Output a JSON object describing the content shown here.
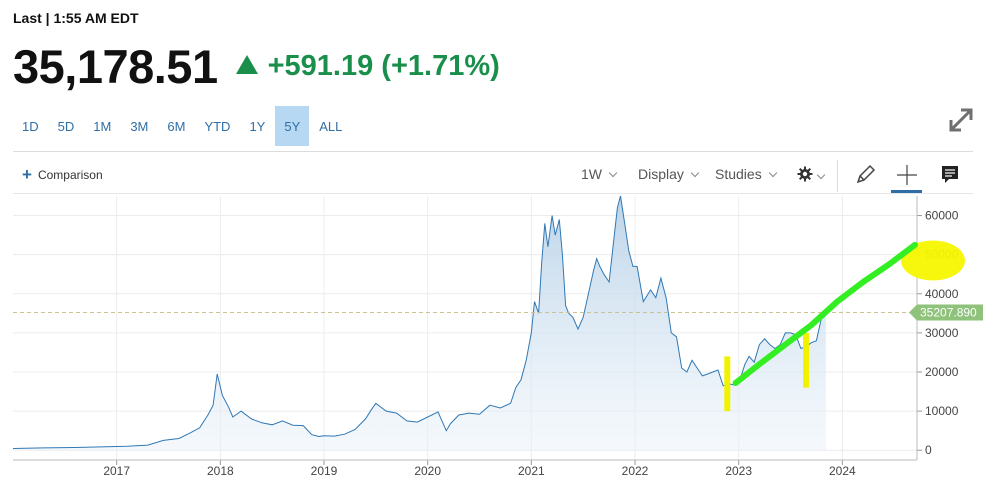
{
  "header": {
    "last_label": "Last | 1:55 AM EDT",
    "price": "35,178.51",
    "change": "+591.19 (+1.71%)",
    "up_color": "#1a8f4c"
  },
  "ranges": [
    "1D",
    "5D",
    "1M",
    "3M",
    "6M",
    "YTD",
    "1Y",
    "5Y",
    "ALL"
  ],
  "active_range": "5Y",
  "toolbar": {
    "comparison_label": "Comparison",
    "interval_label": "1W",
    "display_label": "Display",
    "studies_label": "Studies"
  },
  "icons": {
    "expand": "expand-icon",
    "settings": "gear-icon",
    "draw": "pencil-icon",
    "crosshair": "crosshair-icon",
    "comment": "comment-icon"
  },
  "chart_data": {
    "type": "area",
    "x_unit": "year",
    "xlim": [
      2016.0,
      2024.72
    ],
    "ylim": [
      -2500,
      65000
    ],
    "x_ticks": [
      "2017",
      "2018",
      "2019",
      "2020",
      "2021",
      "2022",
      "2023",
      "2024"
    ],
    "y_ticks": [
      0,
      10000,
      20000,
      30000,
      40000,
      50000,
      60000
    ],
    "y_tick_labels": [
      "0",
      "10000",
      "20000",
      "30000",
      "40000",
      "50000",
      "60000"
    ],
    "last_value": 35207.89,
    "last_value_label": "35207.890",
    "last_value_line": "dashed",
    "grid": true,
    "y_axis_side": "right",
    "line_color": "#2f78b5",
    "fill_color": "#c7dcec",
    "series": [
      {
        "x": [
          2016.0,
          2016.3,
          2016.6,
          2016.9,
          2017.1,
          2017.3,
          2017.45,
          2017.6,
          2017.7,
          2017.8,
          2017.88,
          2017.93,
          2017.97,
          2018.02,
          2018.08,
          2018.12,
          2018.2,
          2018.3,
          2018.4,
          2018.5,
          2018.6,
          2018.7,
          2018.8,
          2018.88,
          2018.95,
          2019.0,
          2019.1,
          2019.2,
          2019.3,
          2019.4,
          2019.46,
          2019.5,
          2019.6,
          2019.7,
          2019.8,
          2019.9,
          2020.0,
          2020.1,
          2020.18,
          2020.22,
          2020.3,
          2020.4,
          2020.5,
          2020.6,
          2020.7,
          2020.8,
          2020.85,
          2020.9,
          2020.95,
          2021.0,
          2021.03,
          2021.07,
          2021.1,
          2021.13,
          2021.16,
          2021.2,
          2021.23,
          2021.27,
          2021.3,
          2021.33,
          2021.36,
          2021.4,
          2021.45,
          2021.5,
          2021.55,
          2021.6,
          2021.63,
          2021.66,
          2021.7,
          2021.75,
          2021.8,
          2021.83,
          2021.86,
          2021.9,
          2021.94,
          2021.98,
          2022.02,
          2022.08,
          2022.15,
          2022.2,
          2022.25,
          2022.3,
          2022.35,
          2022.4,
          2022.45,
          2022.5,
          2022.55,
          2022.6,
          2022.65,
          2022.7,
          2022.75,
          2022.8,
          2022.85,
          2022.9,
          2022.95,
          2023.0,
          2023.06,
          2023.1,
          2023.15,
          2023.2,
          2023.25,
          2023.3,
          2023.35,
          2023.4,
          2023.45,
          2023.5,
          2023.55,
          2023.6,
          2023.65,
          2023.7,
          2023.75,
          2023.8,
          2023.84
        ],
        "y": [
          450,
          600,
          700,
          900,
          1000,
          1300,
          2500,
          3000,
          4300,
          5700,
          9000,
          11500,
          19500,
          14000,
          11000,
          8500,
          10000,
          8000,
          7000,
          6500,
          7500,
          6400,
          6300,
          4000,
          3500,
          3700,
          3600,
          4100,
          5300,
          8000,
          10500,
          12000,
          10000,
          9500,
          7500,
          7200,
          8500,
          9800,
          5000,
          6800,
          9000,
          9500,
          9200,
          11500,
          10800,
          12000,
          16000,
          18000,
          23000,
          30000,
          38000,
          35000,
          48000,
          58000,
          52000,
          60000,
          55000,
          59000,
          50000,
          37000,
          35000,
          34000,
          31000,
          34000,
          40000,
          46000,
          49000,
          47000,
          45000,
          43000,
          55000,
          62000,
          65000,
          58000,
          51000,
          47000,
          47000,
          38000,
          41000,
          39000,
          44000,
          39000,
          30000,
          29000,
          21000,
          20000,
          23000,
          21000,
          19000,
          19500,
          20000,
          20500,
          16500,
          17000,
          16700,
          17000,
          22000,
          24000,
          22500,
          27000,
          28500,
          27000,
          26000,
          27000,
          30000,
          30000,
          29500,
          26000,
          26500,
          27500,
          28000,
          34000,
          35208
        ]
      }
    ],
    "annotations": [
      {
        "type": "yellow vertical marker",
        "x": 2022.89,
        "y_range": [
          10000,
          24000
        ]
      },
      {
        "type": "yellow vertical marker",
        "x": 2023.65,
        "y_range": [
          16000,
          30000
        ]
      },
      {
        "type": "yellow highlight",
        "x": 2024.72,
        "y_range": [
          45000,
          52000
        ]
      },
      {
        "type": "green trend line",
        "x": [
          2022.97,
          2023.2,
          2023.45,
          2023.7,
          2023.95,
          2024.2,
          2024.45,
          2024.7
        ],
        "y": [
          17200,
          22000,
          27000,
          32000,
          38000,
          43000,
          47500,
          52500
        ]
      }
    ]
  }
}
